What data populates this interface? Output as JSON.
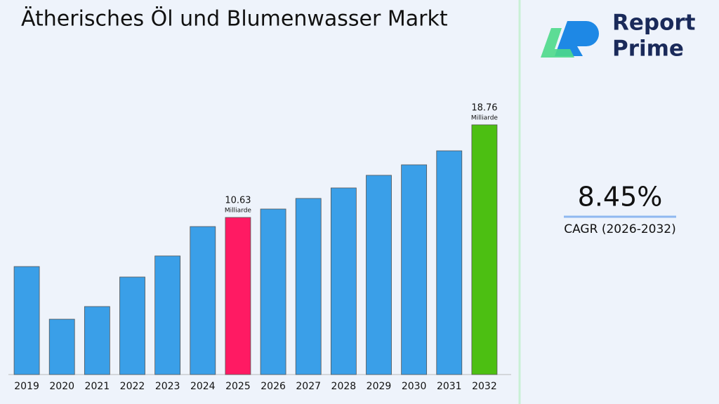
{
  "chart_data": {
    "type": "bar",
    "title": "Ätherisches Öl und Blumenwasser Markt",
    "categories": [
      "2019",
      "2020",
      "2021",
      "2022",
      "2023",
      "2024",
      "2025",
      "2026",
      "2027",
      "2028",
      "2029",
      "2030",
      "2031",
      "2032"
    ],
    "values": [
      6.32,
      1.7,
      2.81,
      5.4,
      7.25,
      9.83,
      10.63,
      11.37,
      12.3,
      13.22,
      14.33,
      15.25,
      16.48,
      18.76
    ],
    "value_labels": [
      null,
      null,
      null,
      null,
      null,
      null,
      "10.63",
      null,
      null,
      null,
      null,
      null,
      null,
      "18.76"
    ],
    "value_label_unit": "Milliarde",
    "colors": [
      "#3a9fe8",
      "#3a9fe8",
      "#3a9fe8",
      "#3a9fe8",
      "#3a9fe8",
      "#3a9fe8",
      "#ff1a63",
      "#3a9fe8",
      "#3a9fe8",
      "#3a9fe8",
      "#3a9fe8",
      "#3a9fe8",
      "#3a9fe8",
      "#4cbf12"
    ],
    "ylim": [
      -3.16,
      23.56
    ],
    "grid": false
  },
  "logo": {
    "line1": "Report",
    "line2": "Prime"
  },
  "cagr": {
    "value": "8.45%",
    "label": "CAGR (2026-2032)"
  }
}
